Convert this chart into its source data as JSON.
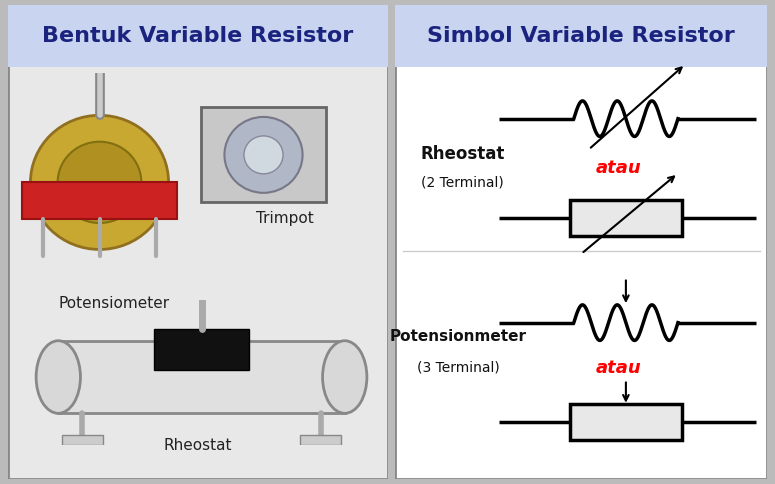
{
  "title_left": "Bentuk Variable Resistor",
  "title_right": "Simbol Variable Resistor",
  "title_color": "#1a237e",
  "title_fontsize": 16,
  "header_bg": "#c8d4f0",
  "body_bg_left": "#e8e8e8",
  "body_bg_right": "#ffffff",
  "border_color": "#888888",
  "text_color": "#000000",
  "red_color": "#ff0000",
  "label_rheostat": "Rheostat",
  "label_rheostat2": "(2 Terminal)",
  "label_potensionmeter": "Potensionmeter",
  "label_potensionmeter2": "(3 Terminal)",
  "label_atau": "atau",
  "label_potensiometer": "Potensiometer",
  "label_trimpot": "Trimpot",
  "label_rheostat_bottom": "Rheostat"
}
